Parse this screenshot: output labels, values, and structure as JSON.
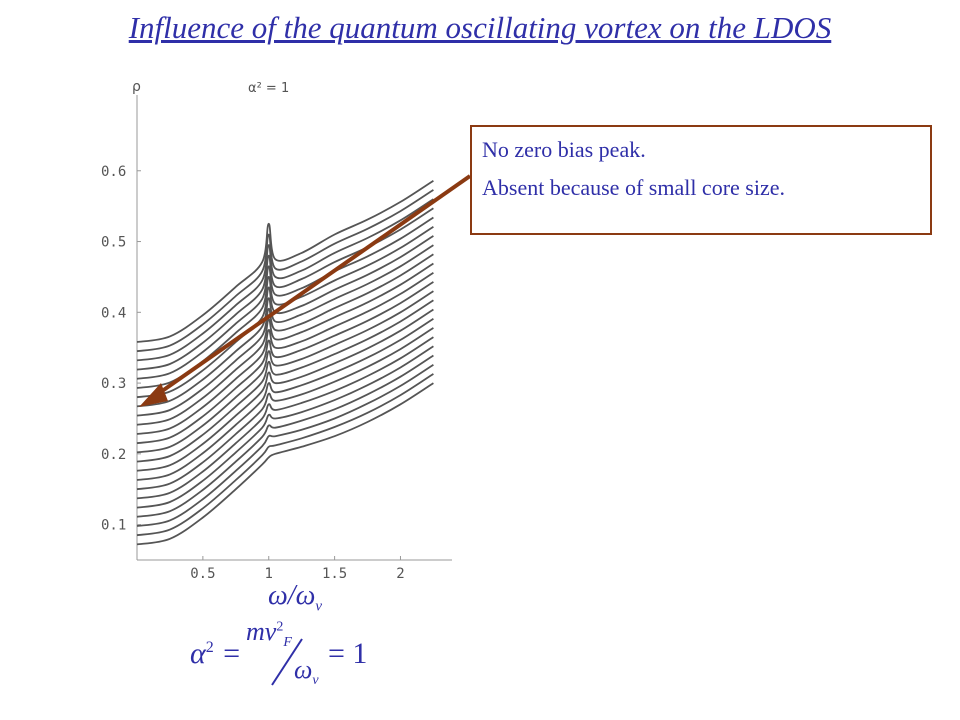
{
  "slide_title": "Influence of the quantum oscillating vortex on the LDOS",
  "annotation": {
    "line1": "No zero bias peak.",
    "line2": "Absent because of small core size."
  },
  "formula": {
    "lhs": "α",
    "lhs_exp": "2",
    "equals": "=",
    "numerator": "mv",
    "numerator_sub": "F",
    "numerator_exp": "2",
    "denominator": "ω",
    "denominator_sub": "v",
    "rhs": "= 1"
  },
  "x_axis_expr": {
    "num": "ω",
    "slash": "/",
    "den": "ω",
    "den_sub": "v"
  },
  "colors": {
    "title": "#2f2fa8",
    "curves": "#555555",
    "arrow": "#8b3a12",
    "box_border": "#8b3a12"
  },
  "chart_data": {
    "type": "line",
    "ylabel": "ρ",
    "inset_label": "α² = 1",
    "xlim": [
      0,
      2.3
    ],
    "ylim": [
      0.05,
      0.7
    ],
    "xticks": [
      "0.5",
      "1",
      "1.5",
      "2"
    ],
    "xtick_values": [
      0.5,
      1,
      1.5,
      2
    ],
    "yticks": [
      "0.1",
      "0.2",
      "0.3",
      "0.4",
      "0.5",
      "0.6"
    ],
    "ytick_values": [
      0.1,
      0.2,
      0.3,
      0.4,
      0.5,
      0.6
    ],
    "x": [
      0,
      0.25,
      0.5,
      0.75,
      0.95,
      1.0,
      1.05,
      1.25,
      1.5,
      1.75,
      2.0,
      2.25
    ],
    "series": [
      {
        "values": [
          0.072,
          0.08,
          0.11,
          0.15,
          0.185,
          0.195,
          0.2,
          0.21,
          0.225,
          0.245,
          0.27,
          0.3
        ]
      },
      {
        "values": [
          0.085,
          0.093,
          0.123,
          0.163,
          0.198,
          0.21,
          0.212,
          0.222,
          0.238,
          0.258,
          0.283,
          0.313
        ]
      },
      {
        "values": [
          0.098,
          0.106,
          0.136,
          0.176,
          0.211,
          0.225,
          0.225,
          0.234,
          0.25,
          0.271,
          0.296,
          0.326
        ]
      },
      {
        "values": [
          0.111,
          0.119,
          0.149,
          0.189,
          0.224,
          0.24,
          0.237,
          0.247,
          0.263,
          0.284,
          0.309,
          0.339
        ]
      },
      {
        "values": [
          0.124,
          0.132,
          0.162,
          0.202,
          0.237,
          0.255,
          0.25,
          0.259,
          0.276,
          0.297,
          0.322,
          0.352
        ]
      },
      {
        "values": [
          0.137,
          0.145,
          0.175,
          0.215,
          0.25,
          0.27,
          0.262,
          0.272,
          0.289,
          0.31,
          0.335,
          0.365
        ]
      },
      {
        "values": [
          0.15,
          0.158,
          0.188,
          0.228,
          0.263,
          0.285,
          0.275,
          0.284,
          0.302,
          0.323,
          0.348,
          0.378
        ]
      },
      {
        "values": [
          0.163,
          0.171,
          0.201,
          0.241,
          0.276,
          0.3,
          0.287,
          0.297,
          0.315,
          0.336,
          0.361,
          0.391
        ]
      },
      {
        "values": [
          0.176,
          0.184,
          0.214,
          0.254,
          0.289,
          0.315,
          0.3,
          0.309,
          0.328,
          0.349,
          0.374,
          0.404
        ]
      },
      {
        "values": [
          0.189,
          0.197,
          0.227,
          0.267,
          0.302,
          0.33,
          0.312,
          0.322,
          0.341,
          0.362,
          0.387,
          0.417
        ]
      },
      {
        "values": [
          0.202,
          0.21,
          0.24,
          0.28,
          0.315,
          0.345,
          0.325,
          0.334,
          0.354,
          0.375,
          0.4,
          0.43
        ]
      },
      {
        "values": [
          0.215,
          0.223,
          0.253,
          0.293,
          0.328,
          0.36,
          0.337,
          0.347,
          0.367,
          0.388,
          0.413,
          0.443
        ]
      },
      {
        "values": [
          0.228,
          0.236,
          0.266,
          0.306,
          0.341,
          0.375,
          0.35,
          0.359,
          0.38,
          0.401,
          0.426,
          0.456
        ]
      },
      {
        "values": [
          0.241,
          0.249,
          0.279,
          0.319,
          0.354,
          0.39,
          0.362,
          0.372,
          0.393,
          0.414,
          0.439,
          0.469
        ]
      },
      {
        "values": [
          0.254,
          0.262,
          0.292,
          0.332,
          0.367,
          0.405,
          0.375,
          0.384,
          0.406,
          0.427,
          0.452,
          0.482
        ]
      },
      {
        "values": [
          0.267,
          0.275,
          0.305,
          0.345,
          0.38,
          0.42,
          0.387,
          0.397,
          0.419,
          0.44,
          0.465,
          0.495
        ]
      },
      {
        "values": [
          0.28,
          0.288,
          0.318,
          0.358,
          0.393,
          0.435,
          0.4,
          0.409,
          0.432,
          0.453,
          0.478,
          0.508
        ]
      },
      {
        "values": [
          0.293,
          0.301,
          0.331,
          0.371,
          0.406,
          0.45,
          0.412,
          0.422,
          0.445,
          0.466,
          0.491,
          0.521
        ]
      },
      {
        "values": [
          0.306,
          0.314,
          0.344,
          0.384,
          0.419,
          0.465,
          0.425,
          0.434,
          0.458,
          0.479,
          0.504,
          0.534
        ]
      },
      {
        "values": [
          0.319,
          0.327,
          0.357,
          0.397,
          0.432,
          0.48,
          0.437,
          0.447,
          0.471,
          0.492,
          0.517,
          0.547
        ]
      },
      {
        "values": [
          0.332,
          0.34,
          0.37,
          0.41,
          0.445,
          0.495,
          0.45,
          0.459,
          0.484,
          0.505,
          0.53,
          0.56
        ]
      },
      {
        "values": [
          0.345,
          0.353,
          0.383,
          0.423,
          0.458,
          0.51,
          0.462,
          0.472,
          0.497,
          0.518,
          0.543,
          0.573
        ]
      },
      {
        "values": [
          0.358,
          0.366,
          0.396,
          0.436,
          0.471,
          0.525,
          0.475,
          0.484,
          0.51,
          0.531,
          0.556,
          0.586
        ]
      }
    ]
  }
}
